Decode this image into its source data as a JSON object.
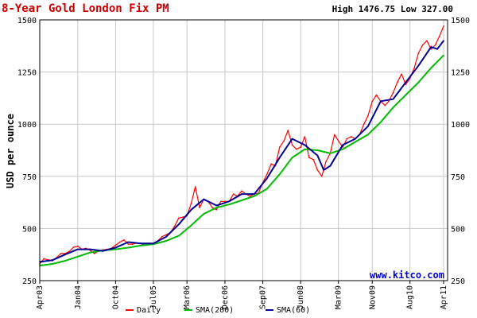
{
  "chart_data": {
    "type": "line",
    "title": "8-Year Gold London Fix PM",
    "high_low_text": "High 1476.75 Low 327.00",
    "ylabel": "USD per ounce",
    "watermark": "www.kitco.com",
    "ylim": [
      250,
      1500
    ],
    "yticks": [
      250,
      500,
      750,
      1000,
      1250,
      1500
    ],
    "xlim": [
      "2003-04-01",
      "2011-04-30"
    ],
    "xticks": [
      {
        "label": "Apr03",
        "date": "2003-04-01"
      },
      {
        "label": "Jan04",
        "date": "2004-01-01"
      },
      {
        "label": "Oct04",
        "date": "2004-10-01"
      },
      {
        "label": "Jul05",
        "date": "2005-07-01"
      },
      {
        "label": "Mar06",
        "date": "2006-03-01"
      },
      {
        "label": "Dec06",
        "date": "2006-12-01"
      },
      {
        "label": "Sep07",
        "date": "2007-09-01"
      },
      {
        "label": "Jun08",
        "date": "2008-06-01"
      },
      {
        "label": "Mar09",
        "date": "2009-03-01"
      },
      {
        "label": "Nov09",
        "date": "2009-11-01"
      },
      {
        "label": "Aug10",
        "date": "2010-08-01"
      },
      {
        "label": "Apr11",
        "date": "2011-04-01"
      }
    ],
    "grid": true,
    "legend_position": "bottom",
    "colors": {
      "title": "#cc0000",
      "daily": "#ff0000",
      "sma200": "#00bb00",
      "sma60": "#000099",
      "watermark": "#0000cc",
      "grid": "#c8c8c8",
      "background": "#ffffff"
    },
    "series": [
      {
        "name": "Daily",
        "key": "daily",
        "points": [
          [
            "2003-04-01",
            330
          ],
          [
            "2003-05-01",
            355
          ],
          [
            "2003-06-01",
            350
          ],
          [
            "2003-07-01",
            345
          ],
          [
            "2003-08-01",
            360
          ],
          [
            "2003-09-01",
            380
          ],
          [
            "2003-10-01",
            380
          ],
          [
            "2003-11-01",
            390
          ],
          [
            "2003-12-01",
            410
          ],
          [
            "2004-01-01",
            415
          ],
          [
            "2004-02-01",
            400
          ],
          [
            "2004-03-01",
            405
          ],
          [
            "2004-04-01",
            395
          ],
          [
            "2004-05-01",
            380
          ],
          [
            "2004-06-01",
            392
          ],
          [
            "2004-07-01",
            398
          ],
          [
            "2004-08-01",
            400
          ],
          [
            "2004-09-01",
            405
          ],
          [
            "2004-10-01",
            420
          ],
          [
            "2004-11-01",
            435
          ],
          [
            "2004-12-01",
            445
          ],
          [
            "2005-01-01",
            425
          ],
          [
            "2005-02-01",
            425
          ],
          [
            "2005-03-01",
            430
          ],
          [
            "2005-04-01",
            430
          ],
          [
            "2005-05-01",
            420
          ],
          [
            "2005-06-01",
            430
          ],
          [
            "2005-07-01",
            425
          ],
          [
            "2005-08-01",
            440
          ],
          [
            "2005-09-01",
            460
          ],
          [
            "2005-10-01",
            470
          ],
          [
            "2005-11-01",
            480
          ],
          [
            "2005-12-01",
            510
          ],
          [
            "2006-01-01",
            550
          ],
          [
            "2006-02-01",
            555
          ],
          [
            "2006-03-01",
            560
          ],
          [
            "2006-04-01",
            620
          ],
          [
            "2006-05-01",
            700
          ],
          [
            "2006-06-01",
            600
          ],
          [
            "2006-07-01",
            640
          ],
          [
            "2006-08-01",
            630
          ],
          [
            "2006-09-01",
            600
          ],
          [
            "2006-10-01",
            590
          ],
          [
            "2006-11-01",
            630
          ],
          [
            "2006-12-01",
            630
          ],
          [
            "2007-01-01",
            630
          ],
          [
            "2007-02-01",
            665
          ],
          [
            "2007-03-01",
            655
          ],
          [
            "2007-04-01",
            680
          ],
          [
            "2007-05-01",
            665
          ],
          [
            "2007-06-01",
            655
          ],
          [
            "2007-07-01",
            665
          ],
          [
            "2007-08-01",
            670
          ],
          [
            "2007-09-01",
            720
          ],
          [
            "2007-10-01",
            760
          ],
          [
            "2007-11-01",
            810
          ],
          [
            "2007-12-01",
            800
          ],
          [
            "2008-01-01",
            890
          ],
          [
            "2008-02-01",
            920
          ],
          [
            "2008-03-01",
            970
          ],
          [
            "2008-04-01",
            900
          ],
          [
            "2008-05-01",
            880
          ],
          [
            "2008-06-01",
            890
          ],
          [
            "2008-07-01",
            940
          ],
          [
            "2008-08-01",
            840
          ],
          [
            "2008-09-01",
            830
          ],
          [
            "2008-10-01",
            780
          ],
          [
            "2008-11-01",
            750
          ],
          [
            "2008-12-01",
            820
          ],
          [
            "2009-01-01",
            860
          ],
          [
            "2009-02-01",
            950
          ],
          [
            "2009-03-01",
            920
          ],
          [
            "2009-04-01",
            890
          ],
          [
            "2009-05-01",
            930
          ],
          [
            "2009-06-01",
            940
          ],
          [
            "2009-07-01",
            930
          ],
          [
            "2009-08-01",
            950
          ],
          [
            "2009-09-01",
            1000
          ],
          [
            "2009-10-01",
            1040
          ],
          [
            "2009-11-01",
            1110
          ],
          [
            "2009-12-01",
            1140
          ],
          [
            "2010-01-01",
            1110
          ],
          [
            "2010-02-01",
            1090
          ],
          [
            "2010-03-01",
            1110
          ],
          [
            "2010-04-01",
            1150
          ],
          [
            "2010-05-01",
            1200
          ],
          [
            "2010-06-01",
            1240
          ],
          [
            "2010-07-01",
            1190
          ],
          [
            "2010-08-01",
            1220
          ],
          [
            "2010-09-01",
            1270
          ],
          [
            "2010-10-01",
            1340
          ],
          [
            "2010-11-01",
            1380
          ],
          [
            "2010-12-01",
            1400
          ],
          [
            "2011-01-01",
            1360
          ],
          [
            "2011-02-01",
            1380
          ],
          [
            "2011-03-01",
            1420
          ],
          [
            "2011-04-01",
            1470
          ]
        ]
      },
      {
        "name": "SMA(200)",
        "key": "sma200",
        "points": [
          [
            "2003-04-01",
            322
          ],
          [
            "2003-07-01",
            330
          ],
          [
            "2003-10-01",
            345
          ],
          [
            "2004-01-01",
            365
          ],
          [
            "2004-04-01",
            385
          ],
          [
            "2004-07-01",
            395
          ],
          [
            "2004-10-01",
            400
          ],
          [
            "2005-01-01",
            408
          ],
          [
            "2005-04-01",
            418
          ],
          [
            "2005-07-01",
            425
          ],
          [
            "2005-10-01",
            440
          ],
          [
            "2006-01-01",
            465
          ],
          [
            "2006-04-01",
            515
          ],
          [
            "2006-07-01",
            570
          ],
          [
            "2006-10-01",
            600
          ],
          [
            "2007-01-01",
            615
          ],
          [
            "2007-04-01",
            635
          ],
          [
            "2007-07-01",
            655
          ],
          [
            "2007-10-01",
            690
          ],
          [
            "2008-01-01",
            760
          ],
          [
            "2008-04-01",
            840
          ],
          [
            "2008-07-01",
            880
          ],
          [
            "2008-10-01",
            875
          ],
          [
            "2009-01-01",
            860
          ],
          [
            "2009-04-01",
            880
          ],
          [
            "2009-07-01",
            915
          ],
          [
            "2009-10-01",
            950
          ],
          [
            "2010-01-01",
            1010
          ],
          [
            "2010-04-01",
            1080
          ],
          [
            "2010-07-01",
            1140
          ],
          [
            "2010-10-01",
            1200
          ],
          [
            "2011-01-01",
            1270
          ],
          [
            "2011-04-01",
            1330
          ]
        ]
      },
      {
        "name": "SMA(60)",
        "key": "sma60",
        "points": [
          [
            "2003-04-01",
            340
          ],
          [
            "2003-07-01",
            348
          ],
          [
            "2003-10-01",
            375
          ],
          [
            "2004-01-01",
            400
          ],
          [
            "2004-04-01",
            400
          ],
          [
            "2004-07-01",
            392
          ],
          [
            "2004-10-01",
            408
          ],
          [
            "2005-01-01",
            435
          ],
          [
            "2005-04-01",
            428
          ],
          [
            "2005-07-01",
            428
          ],
          [
            "2005-10-01",
            460
          ],
          [
            "2006-01-01",
            520
          ],
          [
            "2006-04-01",
            590
          ],
          [
            "2006-07-01",
            640
          ],
          [
            "2006-10-01",
            610
          ],
          [
            "2007-01-01",
            630
          ],
          [
            "2007-04-01",
            665
          ],
          [
            "2007-07-01",
            665
          ],
          [
            "2007-10-01",
            740
          ],
          [
            "2008-01-01",
            840
          ],
          [
            "2008-04-01",
            930
          ],
          [
            "2008-07-01",
            900
          ],
          [
            "2008-10-01",
            850
          ],
          [
            "2008-11-15",
            780
          ],
          [
            "2009-01-01",
            800
          ],
          [
            "2009-04-01",
            900
          ],
          [
            "2009-07-01",
            930
          ],
          [
            "2009-10-01",
            990
          ],
          [
            "2010-01-01",
            1110
          ],
          [
            "2010-04-01",
            1120
          ],
          [
            "2010-07-01",
            1200
          ],
          [
            "2010-10-01",
            1280
          ],
          [
            "2011-01-01",
            1370
          ],
          [
            "2011-02-15",
            1360
          ],
          [
            "2011-04-01",
            1400
          ]
        ]
      }
    ]
  }
}
